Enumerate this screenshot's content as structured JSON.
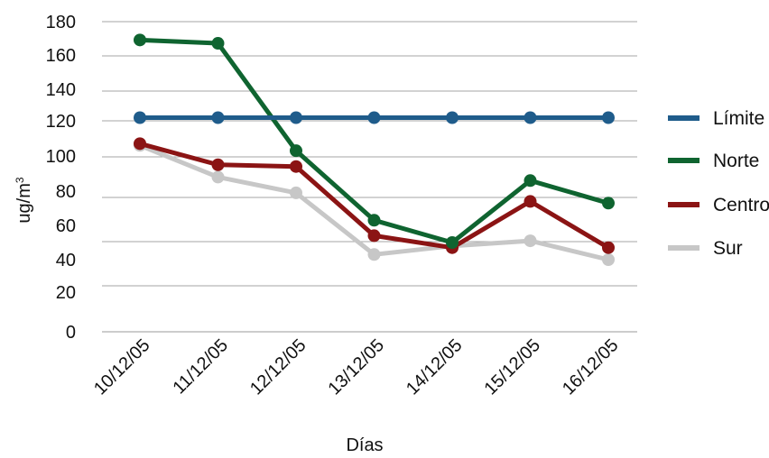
{
  "chart_data": {
    "type": "line",
    "categories": [
      "10/12/05",
      "11/12/05",
      "12/12/05",
      "13/12/05",
      "14/12/05",
      "15/12/05",
      "16/12/05"
    ],
    "yticks": [
      "0",
      "20",
      "40",
      "60",
      "80",
      "100",
      "120",
      "140",
      "160",
      "180"
    ],
    "ylim": [
      0,
      180
    ],
    "xlabel": "Días",
    "ylabel": "ug/m",
    "ylabel_sup": "3",
    "grid": true,
    "legend_position": "right",
    "series": [
      {
        "name": "Límite",
        "color": "#1f5c8b",
        "values": [
          122,
          122,
          122,
          122,
          122,
          122,
          122
        ]
      },
      {
        "name": "Norte",
        "color": "#0f6430",
        "values": [
          169,
          167,
          103,
          63,
          50,
          86,
          73
        ]
      },
      {
        "name": "Centro",
        "color": "#8b1414",
        "values": [
          107,
          95,
          94,
          54,
          47,
          74,
          47
        ]
      },
      {
        "name": "Sur",
        "color": "#c7c7c7",
        "values": [
          106,
          88,
          79,
          43,
          48,
          51,
          40
        ]
      }
    ]
  }
}
